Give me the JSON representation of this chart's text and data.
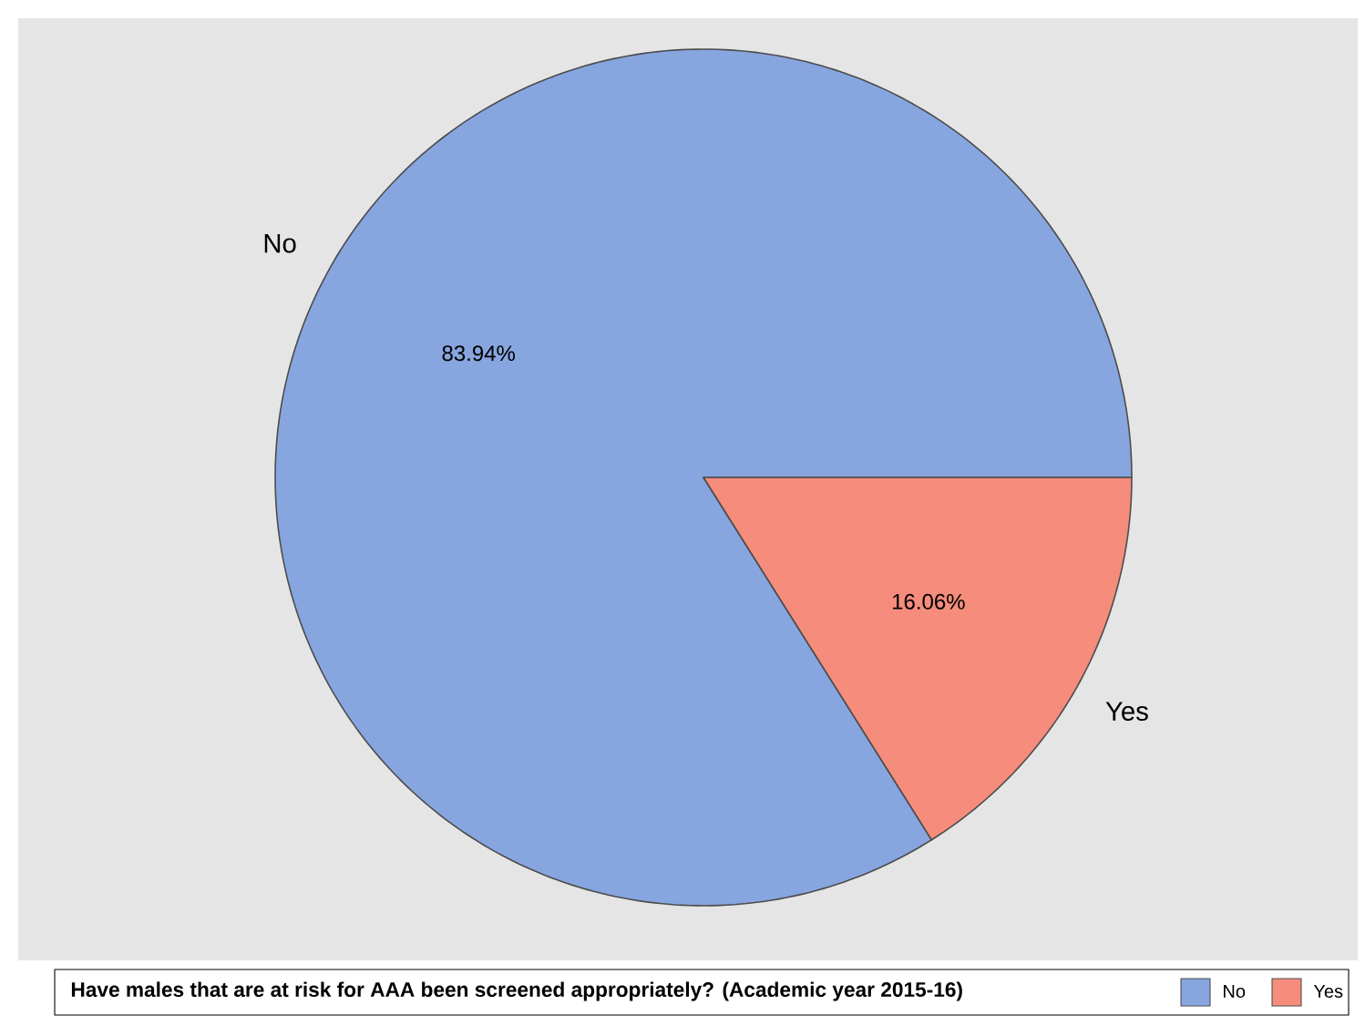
{
  "chart_data": {
    "type": "pie",
    "categories": [
      "No",
      "Yes"
    ],
    "values": [
      83.94,
      16.06
    ],
    "colors": [
      "#87a6e0",
      "#f58c7c"
    ],
    "value_labels": [
      "83.94%",
      "16.06%"
    ],
    "legend_title": "Have males that are at risk for AAA been screened appropriately? (Academic year 2015-16)",
    "legend": "bottom"
  }
}
